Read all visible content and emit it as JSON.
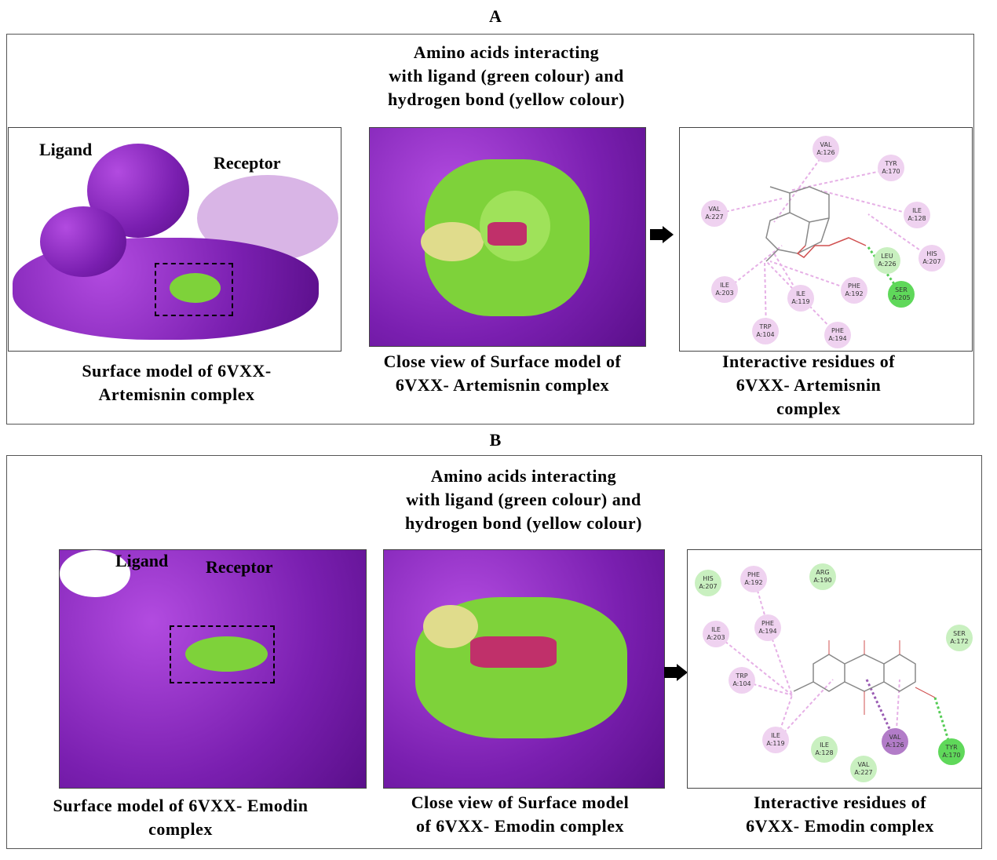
{
  "panels": [
    {
      "label": "A",
      "annotation": [
        "Amino acids interacting",
        "with ligand (green colour) and",
        "hydrogen bond (yellow colour)"
      ],
      "ligand_label": "Ligand",
      "receptor_label": "Receptor",
      "captions": [
        [
          "Surface model of 6VXX-",
          "Artemisnin complex"
        ],
        [
          "Close view of Surface model of",
          "6VXX- Artemisnin complex"
        ],
        [
          "Interactive residues of",
          "6VXX- Artemisnin",
          "complex"
        ]
      ],
      "residues": [
        [
          "VAL",
          "A:126"
        ],
        [
          "TYR",
          "A:170"
        ],
        [
          "VAL",
          "A:227"
        ],
        [
          "ILE",
          "A:128"
        ],
        [
          "HIS",
          "A:207"
        ],
        [
          "LEU",
          "A:226"
        ],
        [
          "SER",
          "A:205"
        ],
        [
          "ILE",
          "A:203"
        ],
        [
          "ILE",
          "A:119"
        ],
        [
          "PHE",
          "A:192"
        ],
        [
          "TRP",
          "A:104"
        ],
        [
          "PHE",
          "A:194"
        ]
      ]
    },
    {
      "label": "B",
      "annotation": [
        "Amino acids interacting",
        "with ligand (green colour) and",
        "hydrogen bond (yellow colour)"
      ],
      "ligand_label": "Ligand",
      "receptor_label": "Receptor",
      "captions": [
        [
          "Surface model of 6VXX- Emodin",
          "complex"
        ],
        [
          "Close view of Surface model",
          "of 6VXX- Emodin complex"
        ],
        [
          "Interactive residues of",
          "6VXX- Emodin complex"
        ]
      ],
      "residues": [
        [
          "HIS",
          "A:207"
        ],
        [
          "PHE",
          "A:192"
        ],
        [
          "ARG",
          "A:190"
        ],
        [
          "PHE",
          "A:194"
        ],
        [
          "ILE",
          "A:203"
        ],
        [
          "SER",
          "A:172"
        ],
        [
          "TRP",
          "A:104"
        ],
        [
          "ILE",
          "A:119"
        ],
        [
          "ILE",
          "A:128"
        ],
        [
          "VAL",
          "A:126"
        ],
        [
          "VAL",
          "A:227"
        ],
        [
          "TYR",
          "A:170"
        ]
      ]
    }
  ],
  "colors": {
    "receptor": "#7a1fb0",
    "interacting": "#7ed23a",
    "hbond": "#e0dc8c",
    "ligand": "#c0306a"
  }
}
